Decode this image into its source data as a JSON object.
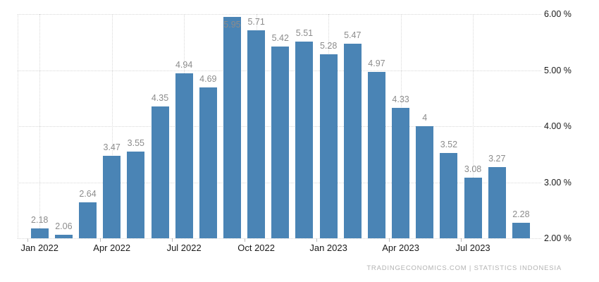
{
  "chart_data": {
    "type": "bar",
    "title": "",
    "values": [
      2.18,
      2.06,
      2.64,
      3.47,
      3.55,
      4.35,
      4.94,
      4.69,
      5.95,
      5.71,
      5.42,
      5.51,
      5.28,
      5.47,
      4.97,
      4.33,
      4,
      3.52,
      3.08,
      3.27,
      2.28
    ],
    "value_labels": [
      "2.18",
      "2.06",
      "2.64",
      "3.47",
      "3.55",
      "4.35",
      "4.94",
      "4.69",
      "5.95",
      "5.71",
      "5.42",
      "5.51",
      "5.28",
      "5.47",
      "4.97",
      "4.33",
      "4",
      "3.52",
      "3.08",
      "3.27",
      "2.28"
    ],
    "x_tick_labels": [
      "Jan 2022",
      "Apr 2022",
      "Jul 2022",
      "Oct 2022",
      "Jan 2023",
      "Apr 2023",
      "Jul 2023"
    ],
    "x_tick_positions": [
      0,
      3,
      6,
      9,
      12,
      15,
      18
    ],
    "y_tick_labels": [
      "6.00 %",
      "5.00 %",
      "4.00 %",
      "3.00 %",
      "2.00 %"
    ],
    "y_tick_values": [
      6,
      5,
      4,
      3,
      2
    ],
    "ylim": [
      2,
      6
    ],
    "grid": true,
    "legend": "none",
    "colors": {
      "bar": "#4a84b5",
      "grid": "#d8d8d8",
      "value_label": "#8c8c8c",
      "axis_label": "#1a1a1a",
      "footer": "#b3b3b3"
    }
  },
  "footer": {
    "source": "TRADINGECONOMICS.COM | STATISTICS INDONESIA"
  }
}
